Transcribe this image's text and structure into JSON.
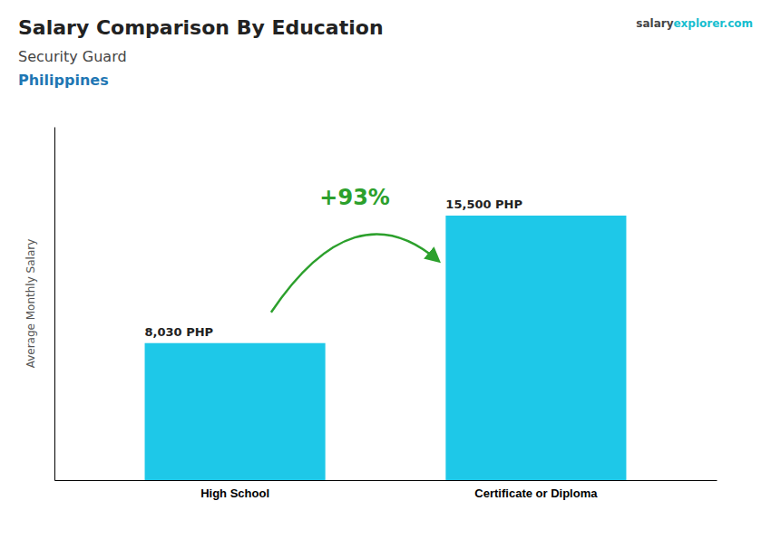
{
  "chart_data": {
    "type": "bar",
    "title": "Salary Comparison By Education",
    "subtitle": "Security Guard",
    "ylabel": "Average Monthly Salary",
    "annotations": [
      "Philippines",
      "salary",
      "explorer.com",
      "+93%"
    ],
    "categories": [
      "High School",
      "Certificate or Diploma"
    ],
    "values": [
      8030,
      15500
    ],
    "value_labels": [
      "8,030 PHP",
      "15,500 PHP"
    ],
    "color": "#1EC8E8",
    "ylim": [
      0,
      20700
    ],
    "tick_labels": "x",
    "data_labels": true
  }
}
